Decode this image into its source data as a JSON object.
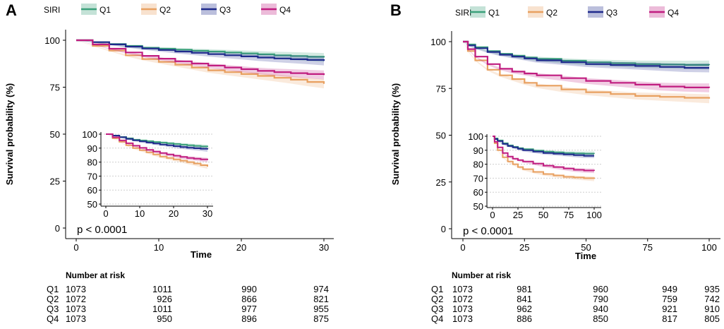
{
  "colors": {
    "Q1": "#3aa07a",
    "Q2": "#e8a060",
    "Q3": "#1f2a8c",
    "Q4": "#c01d80"
  },
  "chart_data": [
    {
      "panel_label": "A",
      "type": "line",
      "legend_title": "SIRI",
      "legend": [
        "Q1",
        "Q2",
        "Q3",
        "Q4"
      ],
      "xlabel": "Time",
      "ylabel": "Survival probability (%)",
      "xlim": [
        0,
        30
      ],
      "ylim": [
        0,
        100
      ],
      "xticks": [
        "0",
        "10",
        "20",
        "30"
      ],
      "yticks": [
        "0",
        "25",
        "50",
        "75",
        "100"
      ],
      "pvalue": "p < 0.0001",
      "series": [
        {
          "name": "Q1",
          "x": [
            0,
            2,
            4,
            6,
            8,
            10,
            12,
            14,
            16,
            18,
            20,
            22,
            24,
            26,
            28,
            30
          ],
          "values": [
            100,
            99,
            98,
            97,
            96,
            95.5,
            95,
            94.4,
            94,
            93.5,
            93,
            92.5,
            92,
            91.6,
            91.2,
            90.8
          ]
        },
        {
          "name": "Q2",
          "x": [
            0,
            2,
            4,
            6,
            8,
            10,
            12,
            14,
            16,
            18,
            20,
            22,
            24,
            26,
            28,
            30
          ],
          "values": [
            100,
            97,
            94.5,
            92,
            90,
            88.5,
            87,
            85.5,
            84,
            83,
            82,
            81,
            80,
            79,
            77.8,
            76.8
          ]
        },
        {
          "name": "Q3",
          "x": [
            0,
            2,
            4,
            6,
            8,
            10,
            12,
            14,
            16,
            18,
            20,
            22,
            24,
            26,
            28,
            30
          ],
          "values": [
            100,
            99,
            97.8,
            96.6,
            95.6,
            94.8,
            94,
            93.3,
            92.6,
            92,
            91.4,
            90.8,
            90.3,
            89.9,
            89.5,
            89
          ]
        },
        {
          "name": "Q4",
          "x": [
            0,
            2,
            4,
            6,
            8,
            10,
            12,
            14,
            16,
            18,
            20,
            22,
            24,
            26,
            28,
            30
          ],
          "values": [
            100,
            97.8,
            95.5,
            93.5,
            91.7,
            90.2,
            88.8,
            87.6,
            86.5,
            85.5,
            84.6,
            83.7,
            83,
            82.5,
            82,
            81.5
          ]
        }
      ],
      "inset": {
        "xlim": [
          0,
          30
        ],
        "ylim": [
          47,
          100
        ],
        "xticks": [
          "0",
          "10",
          "20",
          "30"
        ],
        "yticks": [
          "50",
          "60",
          "70",
          "80",
          "90",
          "100"
        ]
      },
      "risk_table": {
        "title": "Number at risk",
        "time_points": [
          0,
          10,
          20,
          30
        ],
        "rows": [
          {
            "group": "Q1",
            "values": [
              "1073",
              "1011",
              "990",
              "974"
            ]
          },
          {
            "group": "Q2",
            "values": [
              "1072",
              "926",
              "866",
              "821"
            ]
          },
          {
            "group": "Q3",
            "values": [
              "1073",
              "1011",
              "977",
              "955"
            ]
          },
          {
            "group": "Q4",
            "values": [
              "1073",
              "950",
              "896",
              "875"
            ]
          }
        ]
      }
    },
    {
      "panel_label": "B",
      "type": "line",
      "legend_title": "SIRI",
      "legend": [
        "Q1",
        "Q2",
        "Q3",
        "Q4"
      ],
      "xlabel": "Time",
      "ylabel": "Survival probability (%)",
      "xlim": [
        0,
        100
      ],
      "ylim": [
        0,
        100
      ],
      "xticks": [
        "0",
        "25",
        "50",
        "75",
        "100"
      ],
      "yticks": [
        "0",
        "25",
        "50",
        "75",
        "100"
      ],
      "pvalue": "p < 0.0001",
      "series": [
        {
          "name": "Q1",
          "x": [
            0,
            2,
            5,
            10,
            15,
            20,
            25,
            30,
            40,
            50,
            60,
            70,
            80,
            90,
            100
          ],
          "values": [
            100,
            98.5,
            97,
            95,
            93.5,
            92.5,
            91.5,
            90.8,
            89.8,
            89,
            88.5,
            88,
            87.8,
            87.6,
            87.5
          ]
        },
        {
          "name": "Q2",
          "x": [
            0,
            2,
            5,
            10,
            15,
            20,
            25,
            30,
            40,
            50,
            60,
            70,
            80,
            90,
            100
          ],
          "values": [
            100,
            95,
            90,
            85,
            82,
            80,
            78,
            76.5,
            74.5,
            73,
            72,
            71,
            70.5,
            70,
            69.5
          ]
        },
        {
          "name": "Q3",
          "x": [
            0,
            2,
            5,
            10,
            15,
            20,
            25,
            30,
            40,
            50,
            60,
            70,
            80,
            90,
            100
          ],
          "values": [
            100,
            98,
            96.5,
            94.5,
            93,
            92,
            91,
            90,
            89,
            88,
            87.5,
            87,
            86.5,
            86,
            86
          ]
        },
        {
          "name": "Q4",
          "x": [
            0,
            2,
            5,
            10,
            15,
            20,
            25,
            30,
            40,
            50,
            60,
            70,
            80,
            90,
            100
          ],
          "values": [
            100,
            96,
            92,
            88,
            85.5,
            84,
            83,
            82,
            80.5,
            79,
            78,
            77,
            76,
            75.5,
            75.3
          ]
        }
      ],
      "inset": {
        "xlim": [
          0,
          100
        ],
        "ylim": [
          47,
          100
        ],
        "xticks": [
          "0",
          "25",
          "50",
          "75",
          "100"
        ],
        "yticks": [
          "50",
          "60",
          "70",
          "80",
          "90",
          "100"
        ]
      },
      "risk_table": {
        "title": "Number at risk",
        "time_points": [
          0,
          25,
          50,
          75,
          100
        ],
        "rows": [
          {
            "group": "Q1",
            "values": [
              "1073",
              "981",
              "960",
              "949",
              "935"
            ]
          },
          {
            "group": "Q2",
            "values": [
              "1072",
              "841",
              "790",
              "759",
              "742"
            ]
          },
          {
            "group": "Q3",
            "values": [
              "1073",
              "962",
              "940",
              "921",
              "910"
            ]
          },
          {
            "group": "Q4",
            "values": [
              "1073",
              "886",
              "850",
              "817",
              "805"
            ]
          }
        ]
      }
    }
  ]
}
